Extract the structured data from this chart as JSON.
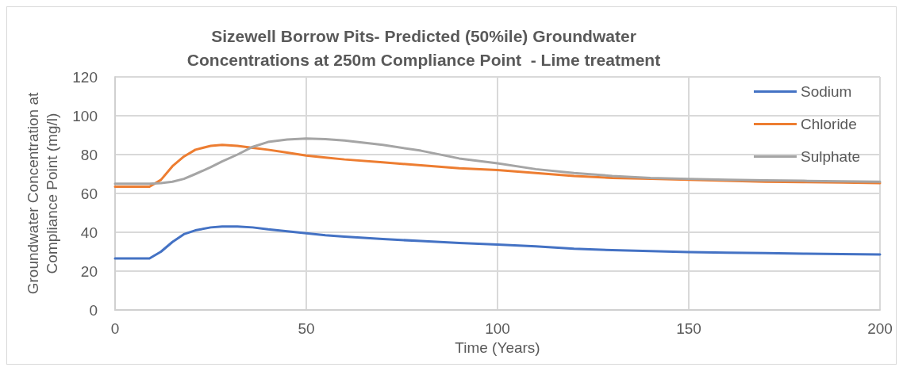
{
  "chart_data": {
    "type": "line",
    "title": "Sizewell Borrow Pits- Predicted (50%ile) Groundwater\nConcentrations at 250m Compliance Point  - Lime treatment",
    "xlabel": "Time (Years)",
    "ylabel": "Groundwater Concentration at\nCompliance Point (mg/l)",
    "x": [
      0,
      5,
      9,
      12,
      15,
      18,
      21,
      25,
      28,
      32,
      36,
      40,
      45,
      50,
      55,
      60,
      70,
      80,
      90,
      100,
      110,
      120,
      130,
      140,
      150,
      160,
      170,
      180,
      190,
      200
    ],
    "series": [
      {
        "name": "Sodium",
        "color": "#4472c4",
        "values": [
          26.5,
          26.5,
          26.5,
          30,
          35,
          39,
          41,
          42.5,
          43,
          43,
          42.5,
          41.5,
          40.5,
          39.5,
          38.5,
          37.8,
          36.5,
          35.5,
          34.5,
          33.7,
          32.8,
          31.5,
          30.8,
          30.3,
          29.8,
          29.5,
          29.3,
          29,
          28.8,
          28.6
        ]
      },
      {
        "name": "Chloride",
        "color": "#ed7d31",
        "values": [
          63.5,
          63.5,
          63.5,
          67,
          74,
          79,
          82.5,
          84.5,
          85,
          84.5,
          83.5,
          82.5,
          81,
          79.5,
          78.5,
          77.5,
          76,
          74.5,
          73,
          72,
          70.5,
          69,
          68,
          67.5,
          67,
          66.5,
          66,
          65.8,
          65.6,
          65.3
        ]
      },
      {
        "name": "Sulphate",
        "color": "#a5a5a5",
        "values": [
          65,
          65,
          65,
          65.3,
          66,
          67.5,
          70,
          73.5,
          76.5,
          80,
          84,
          86.5,
          87.8,
          88.3,
          88,
          87.2,
          85,
          82,
          78,
          75.5,
          72.5,
          70.5,
          69,
          68,
          67.5,
          67,
          66.7,
          66.5,
          66.2,
          66
        ]
      }
    ],
    "xlim": [
      0,
      200
    ],
    "xticks": [
      0,
      50,
      100,
      150,
      200
    ],
    "ylim": [
      0,
      120
    ],
    "yticks": [
      0,
      20,
      40,
      60,
      80,
      100,
      120
    ],
    "grid": true,
    "legend": "top right",
    "marker": "none",
    "line_style": "solid"
  }
}
